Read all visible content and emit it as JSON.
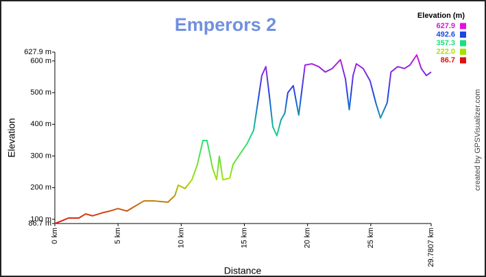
{
  "chart_data": {
    "type": "line",
    "title": "Emperors 2",
    "x_label": "Distance",
    "y_label": "Elevation",
    "credit": "created by GPSVisualizer.com",
    "x": [
      0,
      0.54,
      1.08,
      1.9,
      2.44,
      2.98,
      3.8,
      4.34,
      5.0,
      5.7,
      6.24,
      7.05,
      7.87,
      8.95,
      9.5,
      9.77,
      10.3,
      10.85,
      11.28,
      11.72,
      12.04,
      12.48,
      12.8,
      13.02,
      13.3,
      13.84,
      14.1,
      14.65,
      15.2,
      15.73,
      16.06,
      16.38,
      16.7,
      16.98,
      17.25,
      17.57,
      17.9,
      18.2,
      18.44,
      18.87,
      19.3,
      19.8,
      20.34,
      20.88,
      21.4,
      21.95,
      22.6,
      23.0,
      23.3,
      23.6,
      23.86,
      24.4,
      24.95,
      25.4,
      25.77,
      26.3,
      26.6,
      27.13,
      27.67,
      28.1,
      28.64,
      29.0,
      29.4,
      29.7807
    ],
    "values": [
      86.7,
      95,
      104,
      104,
      117,
      111,
      121,
      126,
      134,
      126,
      139,
      158,
      158,
      154,
      175,
      208,
      197,
      225,
      273,
      349,
      349,
      262,
      225,
      299,
      225,
      230,
      273,
      306,
      338,
      381,
      468,
      554,
      582,
      489,
      392,
      364,
      414,
      435,
      500,
      522,
      429,
      587,
      591,
      582,
      565,
      576,
      604,
      543,
      446,
      554,
      591,
      576,
      537,
      468,
      420,
      468,
      565,
      582,
      576,
      587,
      619,
      576,
      554,
      565
    ],
    "xlim": [
      0,
      29.7807
    ],
    "ylim": [
      86.7,
      627.9
    ],
    "xticks": [
      {
        "value": 0,
        "label": "0 km"
      },
      {
        "value": 5,
        "label": "5 km"
      },
      {
        "value": 10,
        "label": "10 km"
      },
      {
        "value": 15,
        "label": "15 km"
      },
      {
        "value": 20,
        "label": "20 km"
      },
      {
        "value": 25,
        "label": "25 km"
      },
      {
        "value": 29.7807,
        "label": "29.7807 km"
      }
    ],
    "yticks": [
      {
        "value": 86.7,
        "label": "86.7 m"
      },
      {
        "value": 100,
        "label": "100 m"
      },
      {
        "value": 200,
        "label": "200 m"
      },
      {
        "value": 300,
        "label": "300 m"
      },
      {
        "value": 400,
        "label": "400 m"
      },
      {
        "value": 500,
        "label": "500 m"
      },
      {
        "value": 600,
        "label": "600 m"
      },
      {
        "value": 627.9,
        "label": "627.9 m"
      }
    ],
    "grid": false,
    "legend_position": "top-right",
    "color_scale": {
      "title": "Elevation (m)",
      "stops": [
        {
          "value": 627.9,
          "color": "#e010e0"
        },
        {
          "value": 492.6,
          "color": "#1848e0"
        },
        {
          "value": 357.3,
          "color": "#18e080"
        },
        {
          "value": 222,
          "label": "222.0",
          "color": "#a8e000"
        },
        {
          "value": 86.7,
          "color": "#e01010"
        }
      ]
    }
  }
}
